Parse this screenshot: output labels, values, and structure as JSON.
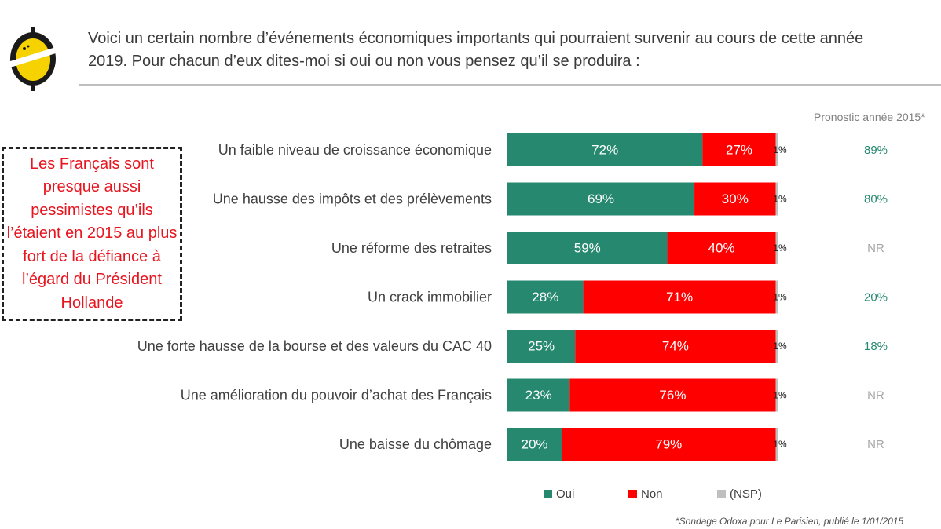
{
  "question": {
    "line1": "Voici un certain nombre d’événements économiques importants qui pourraient survenir au cours de cette année",
    "line2": "2019. Pour chacun d’eux dites-moi si oui ou non vous pensez qu’il se produira :"
  },
  "callout": "Les Français sont presque aussi pessimistes qu’ils l’étaient en 2015 au plus fort de la défiance à l’égard du Président Hollande",
  "comparison_header": "Pronostic année 2015*",
  "footnote": "*Sondage Odoxa pour Le Parisien, publié le 1/01/2015",
  "colors": {
    "oui": "#26896f",
    "non": "#ff0000",
    "nsp": "#bfbfbf",
    "comparison": "#26896f",
    "nr": "#a6a6a6"
  },
  "chart_data": {
    "type": "bar",
    "orientation": "horizontal",
    "stacked": true,
    "unit": "%",
    "categories": [
      "Un faible niveau de croissance économique",
      "Une hausse des impôts et des prélèvements",
      "Une réforme des retraites",
      "Un crack immobilier",
      "Une forte hausse de la bourse et des valeurs du CAC 40",
      "Une amélioration du pouvoir d’achat des Français",
      "Une baisse du chômage"
    ],
    "series": [
      {
        "name": "Oui",
        "values": [
          72,
          69,
          59,
          28,
          25,
          23,
          20
        ]
      },
      {
        "name": "Non",
        "values": [
          27,
          30,
          40,
          71,
          74,
          76,
          79
        ]
      },
      {
        "name": "(NSP)",
        "values": [
          1,
          1,
          1,
          1,
          1,
          1,
          1
        ]
      }
    ],
    "comparison_2015": [
      "89%",
      "80%",
      "NR",
      "20%",
      "18%",
      "NR",
      "NR"
    ],
    "legend": [
      "Oui",
      "Non",
      "(NSP)"
    ],
    "legend_position": "bottom",
    "xlim": [
      0,
      100
    ]
  }
}
